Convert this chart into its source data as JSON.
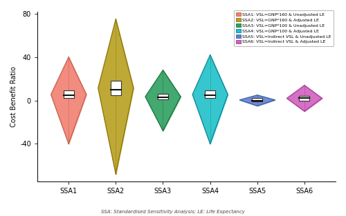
{
  "title": "",
  "ylabel": "Cost Benefit Ratio",
  "xlabel": "",
  "footnote": "SSA: Standardised Sensitivity Analysis; LE: Life Expectancy",
  "categories": [
    "SSA1",
    "SSA2",
    "SSA3",
    "SSA4",
    "SSA5",
    "SSA6"
  ],
  "colors": [
    "#F08070",
    "#B8A020",
    "#2EA060",
    "#20C0C8",
    "#6080D0",
    "#D060C0"
  ],
  "edge_colors": [
    "#C06050",
    "#887010",
    "#207040",
    "#108090",
    "#4060A0",
    "#A04090"
  ],
  "legend_labels": [
    "SSA1: VSL=GNP*160 & Unadjusted LE",
    "SSA2: VSL=GNP*160 & Adjusted LE",
    "SSA3: VSL=GNP*100 & Unadjusted LE",
    "SSA4: VSL=GNP*100 & Adjusted LE",
    "SSA5: VSL=Indirect VSL & Unadjusted LE",
    "SSA6: VSL=Indirect VSL & Adjusted LE"
  ],
  "ylim": [
    -75,
    82
  ],
  "yticks": [
    -40,
    0,
    40,
    80
  ],
  "violin_params": [
    {
      "median": 5,
      "q1": 2,
      "q3": 9,
      "wl": -40,
      "wh": 40,
      "peak": 8
    },
    {
      "median": 10,
      "q1": 5,
      "q3": 18,
      "wl": -68,
      "wh": 75,
      "peak": 14
    },
    {
      "median": 3,
      "q1": 1,
      "q3": 6,
      "wl": -28,
      "wh": 28,
      "peak": 6
    },
    {
      "median": 5,
      "q1": 2,
      "q3": 9,
      "wl": -40,
      "wh": 42,
      "peak": 10
    },
    {
      "median": 0,
      "q1": -1,
      "q3": 2,
      "wl": -5,
      "wh": 5,
      "peak": 2
    },
    {
      "median": 2,
      "q1": 0,
      "q3": 4,
      "wl": -10,
      "wh": 14,
      "peak": 4
    }
  ],
  "box_width": 0.22,
  "violin_width": 0.75
}
